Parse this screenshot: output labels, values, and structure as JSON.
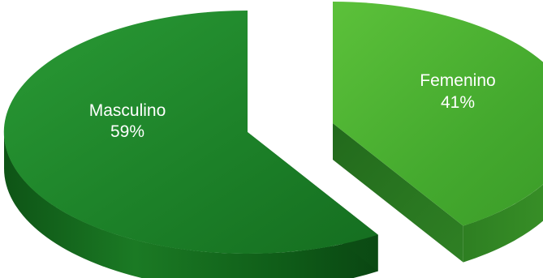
{
  "chart_data": {
    "type": "pie",
    "style": "3d-exploded",
    "categories": [
      "Masculino",
      "Femenino"
    ],
    "values": [
      59,
      41
    ],
    "value_labels": [
      "59%",
      "41%"
    ],
    "colors": {
      "Masculino": {
        "top": "#1f8a2c",
        "side": "#0f5a19"
      },
      "Femenino": {
        "top": "#4cb232",
        "side": "#2a7a22"
      }
    },
    "legend": "none",
    "title": ""
  }
}
